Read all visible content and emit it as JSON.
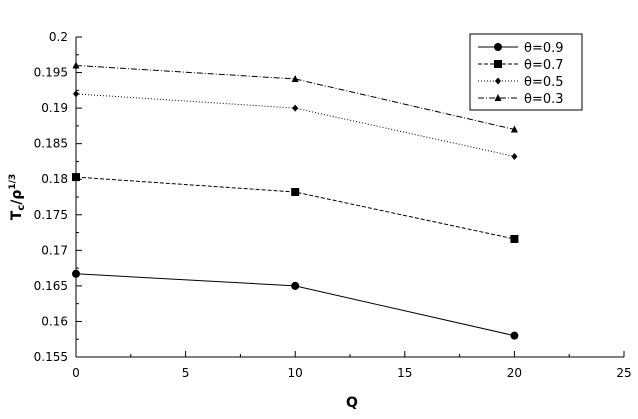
{
  "chart_data": {
    "type": "line",
    "title": "",
    "xlabel": "Q",
    "ylabel_main": "T",
    "ylabel_sub": "c",
    "ylabel_mid": "/ρ",
    "ylabel_sup": "1/3",
    "xlim": [
      0,
      25
    ],
    "ylim": [
      0.155,
      0.2
    ],
    "xticks": [
      0,
      5,
      10,
      15,
      20,
      25
    ],
    "xtick_labels": [
      "0",
      "5",
      "10",
      "15",
      "20",
      "25"
    ],
    "yticks": [
      0.155,
      0.16,
      0.165,
      0.17,
      0.175,
      0.18,
      0.185,
      0.19,
      0.195,
      0.2
    ],
    "ytick_labels": [
      "0.155",
      "0.16",
      "0.165",
      "0.17",
      "0.175",
      "0.18",
      "0.185",
      "0.19",
      "0.195",
      "0.2"
    ],
    "grid": false,
    "legend_position": "top-right",
    "series": [
      {
        "name": "θ=0.9",
        "marker": "circle",
        "dash": "solid",
        "x": [
          0,
          10,
          20
        ],
        "y": [
          0.1667,
          0.165,
          0.158
        ]
      },
      {
        "name": "θ=0.7",
        "marker": "square",
        "dash": "dashed",
        "x": [
          0,
          10,
          20
        ],
        "y": [
          0.1803,
          0.1782,
          0.1716
        ]
      },
      {
        "name": "θ=0.5",
        "marker": "diamond",
        "dash": "dotted",
        "x": [
          0,
          10,
          20
        ],
        "y": [
          0.192,
          0.19,
          0.1832
        ]
      },
      {
        "name": "θ=0.3",
        "marker": "triangle",
        "dash": "dashdot",
        "x": [
          0,
          10,
          20
        ],
        "y": [
          0.196,
          0.1941,
          0.187
        ]
      }
    ]
  }
}
